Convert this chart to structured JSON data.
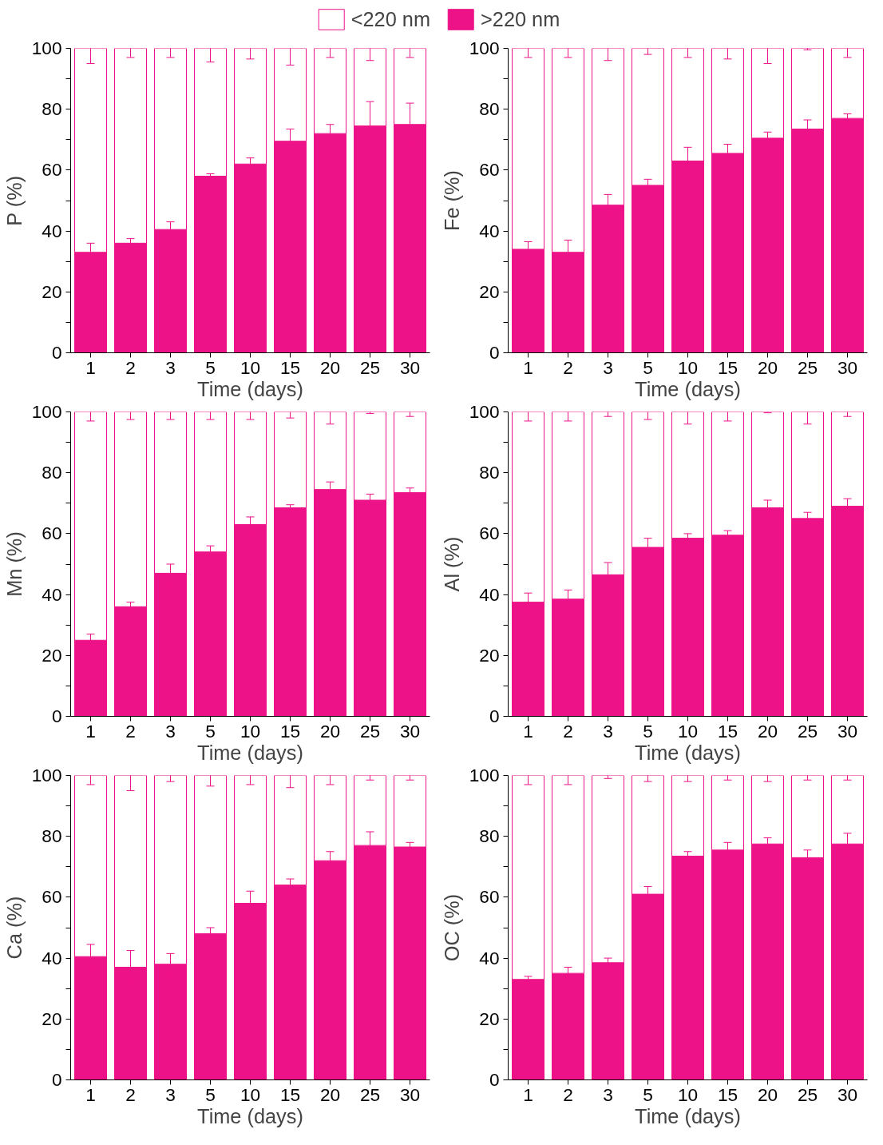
{
  "chart_data": [
    {
      "type": "bar",
      "stacked": true,
      "legend": "top",
      "grid": false,
      "xlabel": "Time (days)",
      "ylabel": "P (%)",
      "categories": [
        "1",
        "2",
        "3",
        "5",
        "10",
        "15",
        "20",
        "25",
        "30"
      ],
      "ylim": [
        0,
        100
      ],
      "yticks": [
        0,
        {
          "value": 10,
          "label": null
        },
        20,
        {
          "value": 30,
          "label": null
        },
        40,
        {
          "value": 50,
          "label": null
        },
        60,
        {
          "value": 70,
          "label": null
        },
        80,
        {
          "value": 90,
          "label": null
        },
        100
      ],
      "series": [
        {
          "name": ">220 nm",
          "color": "#ee1288",
          "values": [
            33,
            36,
            40.5,
            58,
            62,
            69.5,
            72,
            74.5,
            75
          ],
          "errors": [
            3,
            1.5,
            2.5,
            0.8,
            2,
            4,
            3,
            8,
            7
          ]
        },
        {
          "name": "<220 nm",
          "color": "#ffffff",
          "values": [
            67,
            64,
            59.5,
            42,
            38,
            30.5,
            28,
            25.5,
            25
          ],
          "errors": [
            5,
            3,
            3,
            4.5,
            3.5,
            5.5,
            3,
            4,
            3
          ]
        }
      ]
    },
    {
      "type": "bar",
      "stacked": true,
      "grid": false,
      "xlabel": "Time (days)",
      "ylabel": "Fe (%)",
      "categories": [
        "1",
        "2",
        "3",
        "5",
        "10",
        "15",
        "20",
        "25",
        "30"
      ],
      "ylim": [
        0,
        100
      ],
      "yticks": [
        0,
        {
          "value": 10,
          "label": null
        },
        20,
        {
          "value": 30,
          "label": null
        },
        40,
        {
          "value": 50,
          "label": null
        },
        60,
        {
          "value": 70,
          "label": null
        },
        80,
        {
          "value": 90,
          "label": null
        },
        100
      ],
      "series": [
        {
          "color": "#ee1288",
          "values": [
            34,
            33,
            48.5,
            55,
            63,
            65.5,
            70.5,
            73.5,
            77
          ],
          "errors": [
            2.5,
            4,
            3.5,
            2,
            4.5,
            3,
            2,
            3,
            1.5
          ]
        },
        {
          "color": "#ffffff",
          "values": [
            66,
            67,
            51.5,
            45,
            37,
            34.5,
            29.5,
            26.5,
            23
          ],
          "errors": [
            3,
            3,
            4,
            2,
            3,
            3.5,
            5,
            0.5,
            3
          ]
        }
      ]
    },
    {
      "type": "bar",
      "stacked": true,
      "grid": false,
      "xlabel": "Time (days)",
      "ylabel": "Mn (%)",
      "categories": [
        "1",
        "2",
        "3",
        "5",
        "10",
        "15",
        "20",
        "25",
        "30"
      ],
      "ylim": [
        0,
        100
      ],
      "yticks": [
        0,
        {
          "value": 10,
          "label": null
        },
        20,
        {
          "value": 30,
          "label": null
        },
        40,
        {
          "value": 50,
          "label": null
        },
        60,
        {
          "value": 70,
          "label": null
        },
        80,
        {
          "value": 90,
          "label": null
        },
        100
      ],
      "series": [
        {
          "color": "#ee1288",
          "values": [
            25,
            36,
            47,
            54,
            63,
            68.5,
            74.5,
            71,
            73.5
          ],
          "errors": [
            2,
            1.5,
            3,
            2,
            2.5,
            1,
            2.5,
            2,
            1.5
          ]
        },
        {
          "color": "#ffffff",
          "values": [
            75,
            64,
            53,
            46,
            37,
            31.5,
            25.5,
            29,
            26.5
          ],
          "errors": [
            3,
            2.5,
            2.5,
            2.5,
            2.5,
            2,
            4,
            0.5,
            1.5
          ]
        }
      ]
    },
    {
      "type": "bar",
      "stacked": true,
      "grid": false,
      "xlabel": "Time (days)",
      "ylabel": "Al (%)",
      "categories": [
        "1",
        "2",
        "3",
        "5",
        "10",
        "15",
        "20",
        "25",
        "30"
      ],
      "ylim": [
        0,
        100
      ],
      "yticks": [
        0,
        {
          "value": 10,
          "label": null
        },
        20,
        {
          "value": 30,
          "label": null
        },
        40,
        {
          "value": 50,
          "label": null
        },
        60,
        {
          "value": 70,
          "label": null
        },
        80,
        {
          "value": 90,
          "label": null
        },
        100
      ],
      "series": [
        {
          "color": "#ee1288",
          "values": [
            37.5,
            38.5,
            46.5,
            55.5,
            58.5,
            59.5,
            68.5,
            65,
            69
          ],
          "errors": [
            3,
            3,
            4,
            3,
            1.5,
            1.5,
            2.5,
            2,
            2.5
          ]
        },
        {
          "color": "#ffffff",
          "values": [
            62.5,
            61.5,
            53.5,
            44.5,
            41.5,
            40.5,
            31.5,
            35,
            31
          ],
          "errors": [
            3,
            3,
            1.5,
            2.5,
            4,
            3,
            0.3,
            4,
            1.5
          ]
        }
      ]
    },
    {
      "type": "bar",
      "stacked": true,
      "grid": false,
      "xlabel": "Time (days)",
      "ylabel": "Ca (%)",
      "categories": [
        "1",
        "2",
        "3",
        "5",
        "10",
        "15",
        "20",
        "25",
        "30"
      ],
      "ylim": [
        0,
        100
      ],
      "yticks": [
        0,
        {
          "value": 10,
          "label": null
        },
        20,
        {
          "value": 30,
          "label": null
        },
        40,
        {
          "value": 50,
          "label": null
        },
        60,
        {
          "value": 70,
          "label": null
        },
        80,
        {
          "value": 90,
          "label": null
        },
        100
      ],
      "series": [
        {
          "color": "#ee1288",
          "values": [
            40.5,
            37,
            38,
            48,
            58,
            64,
            72,
            77,
            76.5
          ],
          "errors": [
            4,
            5.5,
            3.5,
            2,
            4,
            2,
            3,
            4.5,
            1.5
          ]
        },
        {
          "color": "#ffffff",
          "values": [
            59.5,
            63,
            62,
            52,
            42,
            36,
            28,
            23,
            23.5
          ],
          "errors": [
            3,
            5,
            2,
            3.5,
            3,
            4,
            3,
            1.5,
            1.5
          ]
        }
      ]
    },
    {
      "type": "bar",
      "stacked": true,
      "grid": false,
      "xlabel": "Time (days)",
      "ylabel": "OC (%)",
      "categories": [
        "1",
        "2",
        "3",
        "5",
        "10",
        "15",
        "20",
        "25",
        "30"
      ],
      "ylim": [
        0,
        100
      ],
      "yticks": [
        0,
        {
          "value": 10,
          "label": null
        },
        20,
        {
          "value": 30,
          "label": null
        },
        40,
        {
          "value": 50,
          "label": null
        },
        60,
        {
          "value": 70,
          "label": null
        },
        80,
        {
          "value": 90,
          "label": null
        },
        100
      ],
      "series": [
        {
          "color": "#ee1288",
          "values": [
            33,
            35,
            38.5,
            61,
            73.5,
            75.5,
            77.5,
            73,
            77.5
          ],
          "errors": [
            1,
            2,
            1.5,
            2.5,
            1.5,
            2.5,
            2,
            2.5,
            3.5
          ]
        },
        {
          "color": "#ffffff",
          "values": [
            67,
            65,
            61.5,
            39,
            26.5,
            24.5,
            22.5,
            27,
            22.5
          ],
          "errors": [
            3,
            3,
            1,
            2,
            2,
            1.5,
            2,
            1.5,
            1.5
          ]
        }
      ]
    }
  ]
}
